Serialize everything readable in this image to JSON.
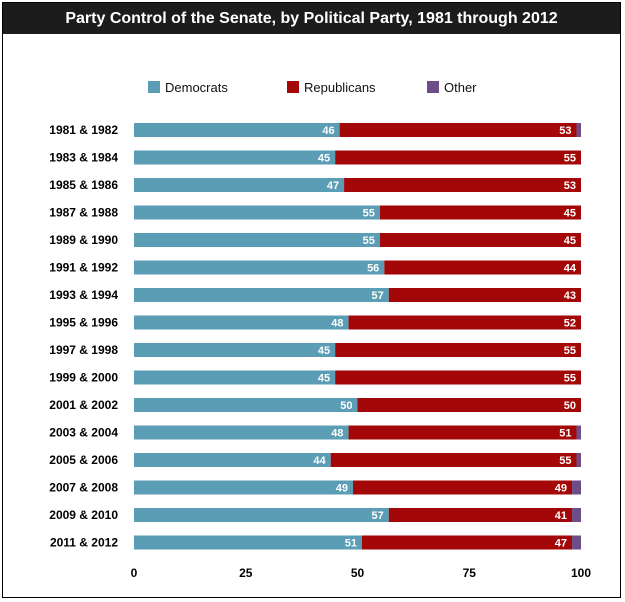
{
  "colors": {
    "democrats": "#5a9db5",
    "republicans": "#a30707",
    "other": "#6d4d87"
  },
  "chart_data": {
    "type": "bar",
    "orientation": "horizontal",
    "stacked": true,
    "title": "Party Control of the Senate, by Political Party, 1981 through 2012",
    "xlabel": "",
    "ylabel": "",
    "xlim": [
      0,
      100
    ],
    "xticks": [
      0,
      25,
      50,
      75,
      100
    ],
    "legend_position": "top",
    "categories": [
      "1981 & 1982",
      "1983 & 1984",
      "1985 & 1986",
      "1987 & 1988",
      "1989 & 1990",
      "1991 & 1992",
      "1993 & 1994",
      "1995 & 1996",
      "1997 & 1998",
      "1999 & 2000",
      "2001 & 2002",
      "2003 & 2004",
      "2005 & 2006",
      "2007 & 2008",
      "2009 & 2010",
      "2011 & 2012"
    ],
    "series": [
      {
        "name": "Democrats",
        "values": [
          46,
          45,
          47,
          55,
          55,
          56,
          57,
          48,
          45,
          45,
          50,
          48,
          44,
          49,
          57,
          51
        ]
      },
      {
        "name": "Republicans",
        "values": [
          53,
          55,
          53,
          45,
          45,
          44,
          43,
          52,
          55,
          55,
          50,
          51,
          55,
          49,
          41,
          47
        ]
      },
      {
        "name": "Other",
        "values": [
          1,
          0,
          0,
          0,
          0,
          0,
          0,
          0,
          0,
          0,
          0,
          1,
          1,
          2,
          2,
          2
        ]
      }
    ]
  }
}
